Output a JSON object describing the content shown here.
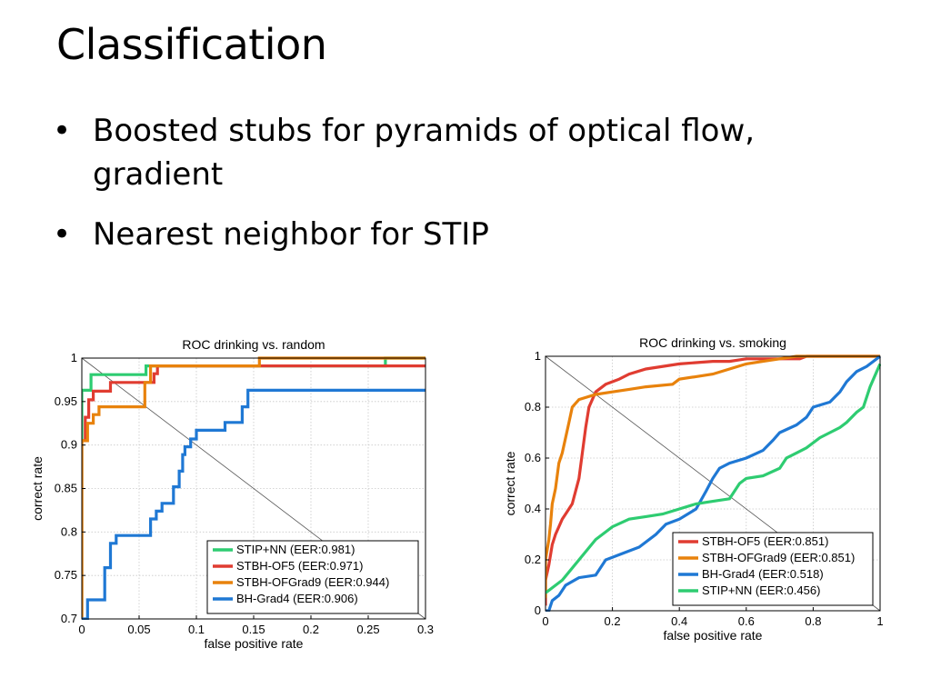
{
  "slide": {
    "title": "Classification",
    "bullets": [
      "Boosted stubs for pyramids of optical flow, gradient",
      "Nearest neighbor for STIP"
    ]
  },
  "chart_data": [
    {
      "type": "line",
      "title": "ROC drinking vs. random",
      "xlabel": "false positive rate",
      "ylabel": "correct rate",
      "xlim": [
        0,
        0.3
      ],
      "ylim": [
        0.7,
        1
      ],
      "xticks": [
        "0",
        "0.05",
        "0.1",
        "0.15",
        "0.2",
        "0.25",
        "0.3"
      ],
      "yticks": [
        "0.7",
        "0.75",
        "0.8",
        "0.85",
        "0.9",
        "0.95",
        "1"
      ],
      "grid": true,
      "legend_position": "bottom-right",
      "diagonal": true,
      "series": [
        {
          "name": "STIP+NN (EER:0.981)",
          "color": "#2ecc71",
          "points": [
            [
              0,
              0.7
            ],
            [
              0,
              0.963
            ],
            [
              0.008,
              0.963
            ],
            [
              0.008,
              0.981
            ],
            [
              0.056,
              0.981
            ],
            [
              0.056,
              0.991
            ],
            [
              0.265,
              0.991
            ],
            [
              0.265,
              1
            ],
            [
              0.3,
              1
            ]
          ]
        },
        {
          "name": "STBH-OF5 (EER:0.971)",
          "color": "#e03c31",
          "points": [
            [
              0,
              0.7
            ],
            [
              0,
              0.905
            ],
            [
              0.003,
              0.905
            ],
            [
              0.003,
              0.932
            ],
            [
              0.006,
              0.932
            ],
            [
              0.006,
              0.952
            ],
            [
              0.01,
              0.952
            ],
            [
              0.01,
              0.962
            ],
            [
              0.025,
              0.962
            ],
            [
              0.025,
              0.972
            ],
            [
              0.063,
              0.972
            ],
            [
              0.063,
              0.982
            ],
            [
              0.066,
              0.982
            ],
            [
              0.066,
              0.991
            ],
            [
              0.3,
              0.991
            ]
          ]
        },
        {
          "name": "STBH-OFGrad9 (EER:0.944)",
          "color": "#e8820c",
          "points": [
            [
              0,
              0.7
            ],
            [
              0,
              0.905
            ],
            [
              0.005,
              0.905
            ],
            [
              0.005,
              0.925
            ],
            [
              0.01,
              0.925
            ],
            [
              0.01,
              0.935
            ],
            [
              0.015,
              0.935
            ],
            [
              0.015,
              0.944
            ],
            [
              0.055,
              0.944
            ],
            [
              0.055,
              0.972
            ],
            [
              0.06,
              0.972
            ],
            [
              0.06,
              0.991
            ],
            [
              0.155,
              0.991
            ],
            [
              0.155,
              1
            ],
            [
              0.3,
              1
            ]
          ]
        },
        {
          "name": "BH-Grad4 (EER:0.906)",
          "color": "#1f78d4",
          "points": [
            [
              0,
              0.7
            ],
            [
              0.005,
              0.7
            ],
            [
              0.005,
              0.722
            ],
            [
              0.02,
              0.722
            ],
            [
              0.02,
              0.759
            ],
            [
              0.025,
              0.759
            ],
            [
              0.025,
              0.787
            ],
            [
              0.03,
              0.787
            ],
            [
              0.03,
              0.796
            ],
            [
              0.06,
              0.796
            ],
            [
              0.06,
              0.815
            ],
            [
              0.065,
              0.815
            ],
            [
              0.065,
              0.824
            ],
            [
              0.07,
              0.824
            ],
            [
              0.07,
              0.833
            ],
            [
              0.08,
              0.833
            ],
            [
              0.08,
              0.852
            ],
            [
              0.085,
              0.852
            ],
            [
              0.085,
              0.87
            ],
            [
              0.088,
              0.87
            ],
            [
              0.088,
              0.889
            ],
            [
              0.09,
              0.889
            ],
            [
              0.09,
              0.898
            ],
            [
              0.095,
              0.898
            ],
            [
              0.095,
              0.907
            ],
            [
              0.1,
              0.907
            ],
            [
              0.1,
              0.917
            ],
            [
              0.125,
              0.917
            ],
            [
              0.125,
              0.926
            ],
            [
              0.14,
              0.926
            ],
            [
              0.14,
              0.944
            ],
            [
              0.145,
              0.944
            ],
            [
              0.145,
              0.963
            ],
            [
              0.3,
              0.963
            ]
          ]
        }
      ]
    },
    {
      "type": "line",
      "title": "ROC drinking vs. smoking",
      "xlabel": "false positive rate",
      "ylabel": "correct rate",
      "xlim": [
        0,
        1
      ],
      "ylim": [
        0,
        1
      ],
      "xticks": [
        "0",
        "0.2",
        "0.4",
        "0.6",
        "0.8",
        "1"
      ],
      "yticks": [
        "0",
        "0.2",
        "0.4",
        "0.6",
        "0.8",
        "1"
      ],
      "grid": true,
      "legend_position": "bottom-right",
      "diagonal": true,
      "series": [
        {
          "name": "STBH-OF5 (EER:0.851)",
          "color": "#e03c31",
          "points": [
            [
              0,
              0.02
            ],
            [
              0,
              0.12
            ],
            [
              0.01,
              0.18
            ],
            [
              0.02,
              0.26
            ],
            [
              0.03,
              0.3
            ],
            [
              0.04,
              0.33
            ],
            [
              0.05,
              0.36
            ],
            [
              0.06,
              0.38
            ],
            [
              0.08,
              0.42
            ],
            [
              0.09,
              0.47
            ],
            [
              0.1,
              0.52
            ],
            [
              0.11,
              0.62
            ],
            [
              0.12,
              0.72
            ],
            [
              0.13,
              0.8
            ],
            [
              0.15,
              0.86
            ],
            [
              0.18,
              0.89
            ],
            [
              0.2,
              0.9
            ],
            [
              0.22,
              0.91
            ],
            [
              0.25,
              0.93
            ],
            [
              0.3,
              0.95
            ],
            [
              0.4,
              0.97
            ],
            [
              0.5,
              0.98
            ],
            [
              0.55,
              0.98
            ],
            [
              0.6,
              0.99
            ],
            [
              0.76,
              0.99
            ],
            [
              0.78,
              1
            ],
            [
              1,
              1
            ]
          ]
        },
        {
          "name": "STBH-OFGrad9 (EER:0.851)",
          "color": "#e8820c",
          "points": [
            [
              0,
              0.05
            ],
            [
              0,
              0.2
            ],
            [
              0.01,
              0.28
            ],
            [
              0.015,
              0.34
            ],
            [
              0.02,
              0.42
            ],
            [
              0.03,
              0.48
            ],
            [
              0.04,
              0.58
            ],
            [
              0.05,
              0.62
            ],
            [
              0.06,
              0.68
            ],
            [
              0.07,
              0.74
            ],
            [
              0.08,
              0.8
            ],
            [
              0.1,
              0.83
            ],
            [
              0.15,
              0.85
            ],
            [
              0.2,
              0.86
            ],
            [
              0.25,
              0.87
            ],
            [
              0.3,
              0.88
            ],
            [
              0.38,
              0.89
            ],
            [
              0.4,
              0.91
            ],
            [
              0.45,
              0.92
            ],
            [
              0.5,
              0.93
            ],
            [
              0.55,
              0.95
            ],
            [
              0.6,
              0.97
            ],
            [
              0.65,
              0.98
            ],
            [
              0.7,
              0.99
            ],
            [
              0.75,
              1
            ],
            [
              1,
              1
            ]
          ]
        },
        {
          "name": "BH-Grad4 (EER:0.518)",
          "color": "#1f78d4",
          "points": [
            [
              0,
              0
            ],
            [
              0.01,
              0.0
            ],
            [
              0.02,
              0.04
            ],
            [
              0.04,
              0.06
            ],
            [
              0.06,
              0.1
            ],
            [
              0.1,
              0.13
            ],
            [
              0.15,
              0.14
            ],
            [
              0.18,
              0.2
            ],
            [
              0.22,
              0.22
            ],
            [
              0.28,
              0.25
            ],
            [
              0.33,
              0.3
            ],
            [
              0.36,
              0.34
            ],
            [
              0.4,
              0.36
            ],
            [
              0.45,
              0.4
            ],
            [
              0.48,
              0.47
            ],
            [
              0.5,
              0.52
            ],
            [
              0.52,
              0.56
            ],
            [
              0.55,
              0.58
            ],
            [
              0.6,
              0.6
            ],
            [
              0.65,
              0.63
            ],
            [
              0.68,
              0.67
            ],
            [
              0.7,
              0.7
            ],
            [
              0.75,
              0.73
            ],
            [
              0.78,
              0.76
            ],
            [
              0.8,
              0.8
            ],
            [
              0.85,
              0.82
            ],
            [
              0.88,
              0.86
            ],
            [
              0.9,
              0.9
            ],
            [
              0.93,
              0.94
            ],
            [
              0.96,
              0.96
            ],
            [
              0.98,
              0.98
            ],
            [
              1,
              1
            ]
          ]
        },
        {
          "name": "STIP+NN (EER:0.456)",
          "color": "#2ecc71",
          "points": [
            [
              0,
              0.07
            ],
            [
              0.05,
              0.12
            ],
            [
              0.1,
              0.2
            ],
            [
              0.15,
              0.28
            ],
            [
              0.2,
              0.33
            ],
            [
              0.25,
              0.36
            ],
            [
              0.3,
              0.37
            ],
            [
              0.35,
              0.38
            ],
            [
              0.4,
              0.4
            ],
            [
              0.45,
              0.42
            ],
            [
              0.5,
              0.43
            ],
            [
              0.55,
              0.44
            ],
            [
              0.58,
              0.5
            ],
            [
              0.6,
              0.52
            ],
            [
              0.65,
              0.53
            ],
            [
              0.7,
              0.56
            ],
            [
              0.72,
              0.6
            ],
            [
              0.75,
              0.62
            ],
            [
              0.78,
              0.64
            ],
            [
              0.82,
              0.68
            ],
            [
              0.85,
              0.7
            ],
            [
              0.88,
              0.72
            ],
            [
              0.9,
              0.74
            ],
            [
              0.93,
              0.78
            ],
            [
              0.95,
              0.8
            ],
            [
              0.97,
              0.88
            ],
            [
              0.99,
              0.94
            ],
            [
              1,
              0.97
            ]
          ]
        }
      ]
    }
  ]
}
